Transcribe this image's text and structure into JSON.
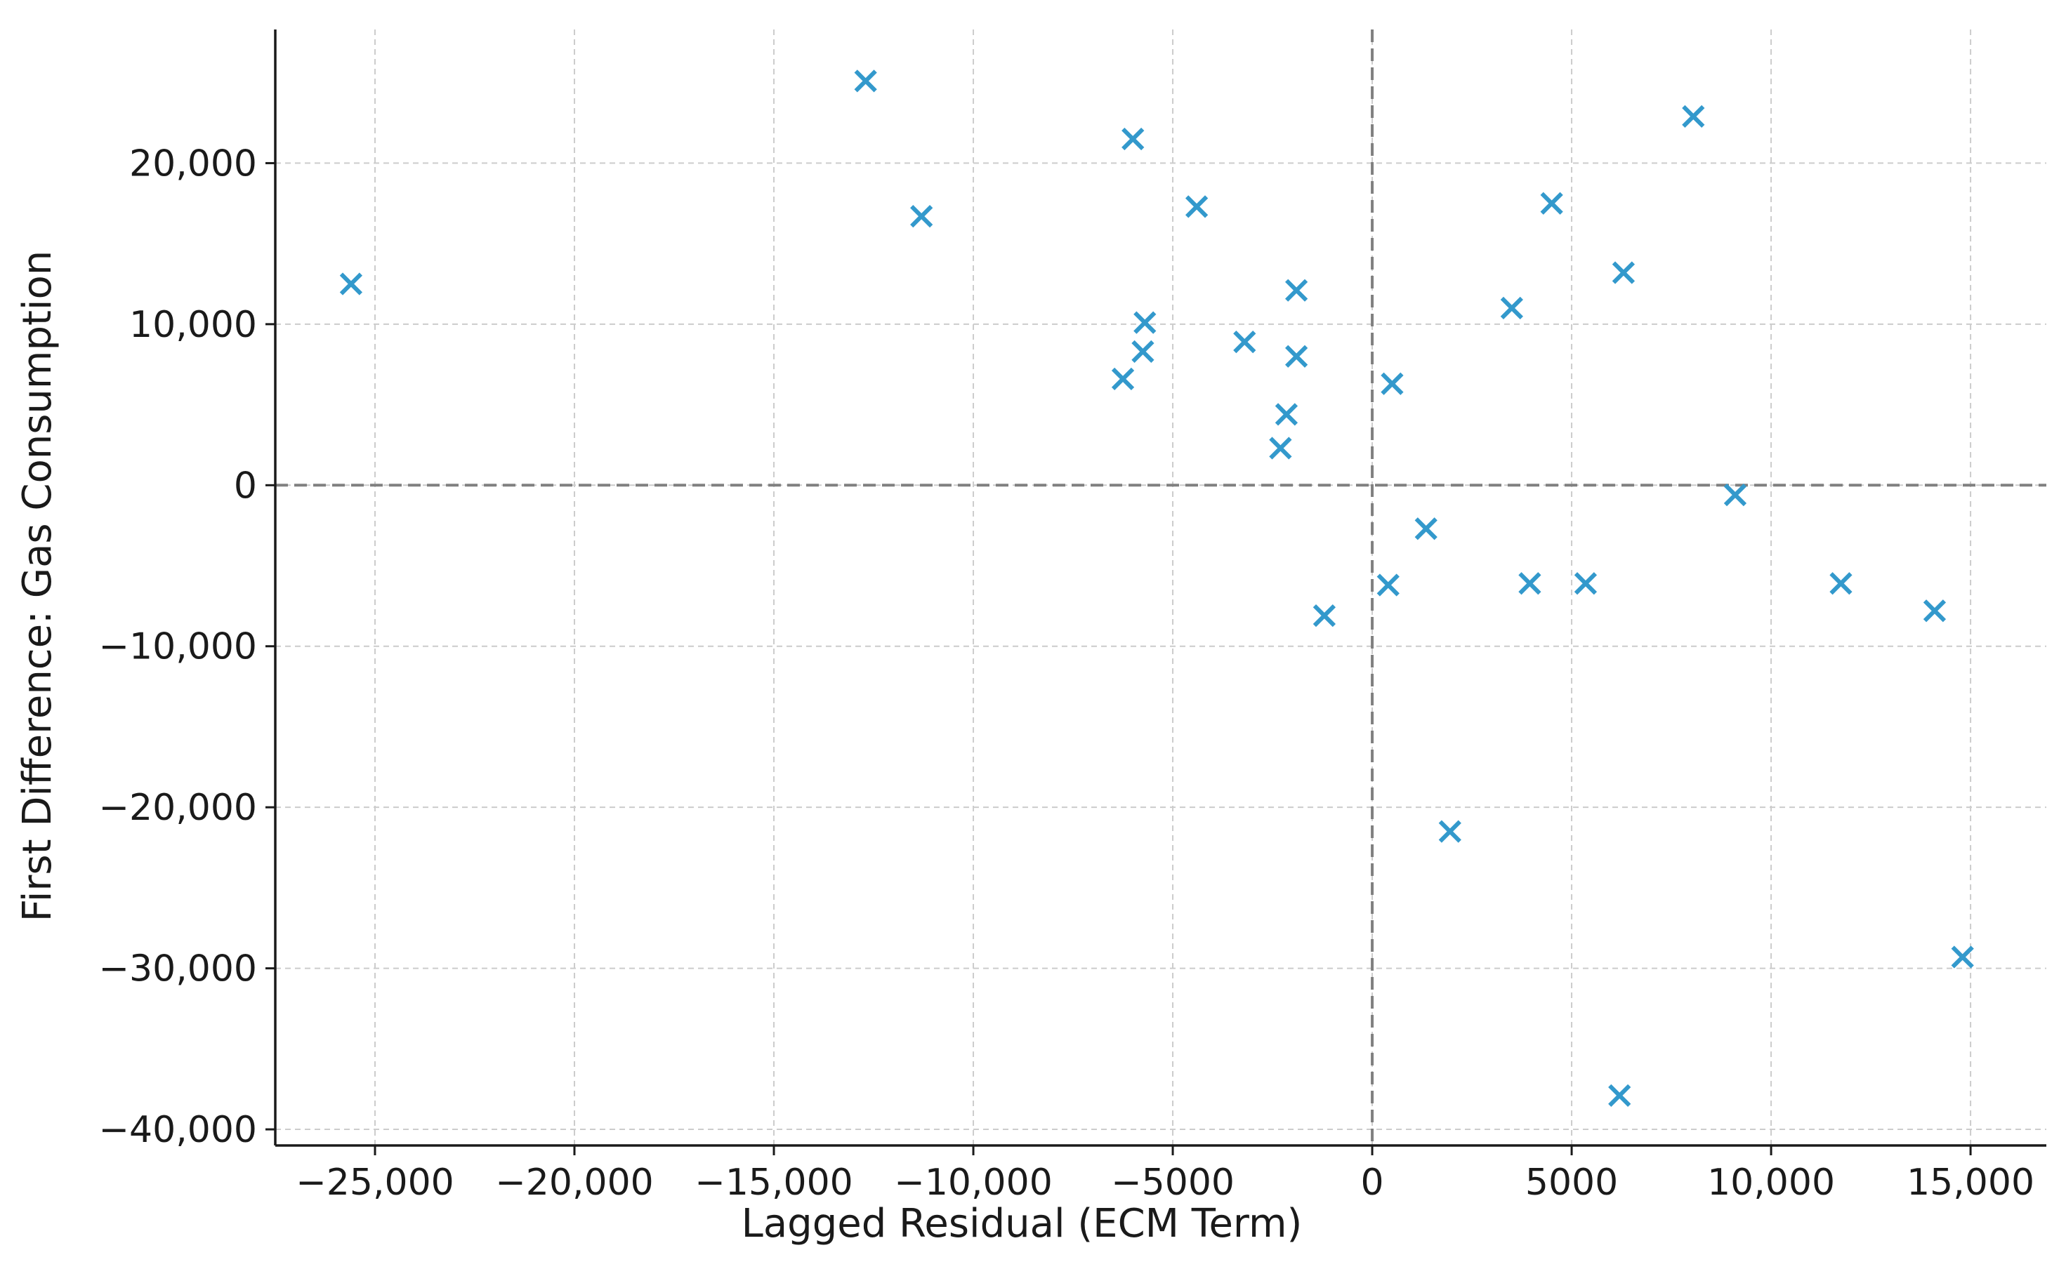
{
  "chart_data": {
    "type": "scatter",
    "title": "",
    "xlabel": "Lagged Residual (ECM Term)",
    "ylabel": "First Difference: Gas Consumption",
    "xlim": [
      -27500,
      16900
    ],
    "ylim": [
      -41000,
      28300
    ],
    "xticks": [
      -25000,
      -20000,
      -15000,
      -10000,
      -5000,
      0,
      5000,
      10000,
      15000
    ],
    "xtick_labels": [
      "−25,000",
      "−20,000",
      "−15,000",
      "−10,000",
      "−5000",
      "0",
      "5000",
      "10,000",
      "15,000"
    ],
    "yticks": [
      20000,
      10000,
      0,
      -10000,
      -20000,
      -30000,
      -40000
    ],
    "ytick_labels": [
      "20,000",
      "10,000",
      "0",
      "−10,000",
      "−20,000",
      "−30,000",
      "−40,000"
    ],
    "grid": true,
    "zero_lines": true,
    "marker": "x",
    "colors": {
      "marker": "#3399cc",
      "grid": "#cccccc",
      "zero_line": "#808080",
      "axis": "#1a1a1a"
    },
    "points": [
      {
        "x": -25600,
        "y": 12500
      },
      {
        "x": -12700,
        "y": 25100
      },
      {
        "x": -11300,
        "y": 16700
      },
      {
        "x": -6000,
        "y": 21500
      },
      {
        "x": -5700,
        "y": 10100
      },
      {
        "x": -5750,
        "y": 8300
      },
      {
        "x": -6250,
        "y": 6600
      },
      {
        "x": -4400,
        "y": 17300
      },
      {
        "x": -3200,
        "y": 8900
      },
      {
        "x": -1900,
        "y": 12100
      },
      {
        "x": -1900,
        "y": 8000
      },
      {
        "x": -2150,
        "y": 4400
      },
      {
        "x": -2300,
        "y": 2300
      },
      {
        "x": -1200,
        "y": -8100
      },
      {
        "x": 500,
        "y": 6300
      },
      {
        "x": 400,
        "y": -6200
      },
      {
        "x": 1350,
        "y": -2700
      },
      {
        "x": 1950,
        "y": -21500
      },
      {
        "x": 3500,
        "y": 11000
      },
      {
        "x": 4500,
        "y": 17500
      },
      {
        "x": 3950,
        "y": -6100
      },
      {
        "x": 5350,
        "y": -6100
      },
      {
        "x": 6300,
        "y": 13200
      },
      {
        "x": 6200,
        "y": -37900
      },
      {
        "x": 8050,
        "y": 22900
      },
      {
        "x": 9100,
        "y": -600
      },
      {
        "x": 11750,
        "y": -6100
      },
      {
        "x": 14100,
        "y": -7800
      },
      {
        "x": 14800,
        "y": -29300
      }
    ]
  }
}
